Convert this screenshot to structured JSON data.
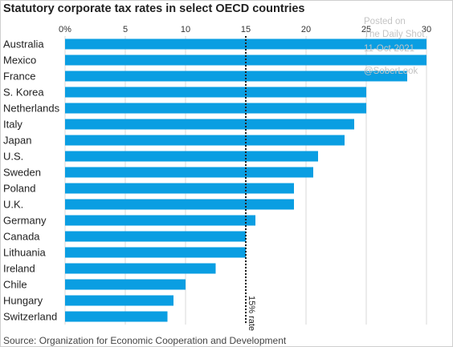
{
  "title": "Statutory corporate tax rates in select OECD countries",
  "source": "Source: Organization for Economic Cooperation and Development",
  "watermark": {
    "posted": "Posted on",
    "site": "The Daily Shot",
    "date": "11-Oct-2021",
    "handle": "@SoberLook"
  },
  "colors": {
    "bar": "#0a9ee2",
    "grid": "#d9d9d9",
    "reference": "#222222"
  },
  "chart_data": {
    "type": "bar",
    "orientation": "horizontal",
    "title": "Statutory corporate tax rates in select OECD countries",
    "categories": [
      "Australia",
      "Mexico",
      "France",
      "S. Korea",
      "Netherlands",
      "Italy",
      "Japan",
      "U.S.",
      "Sweden",
      "Poland",
      "U.K.",
      "Germany",
      "Canada",
      "Lithuania",
      "Ireland",
      "Chile",
      "Hungary",
      "Switzerland"
    ],
    "values": [
      30,
      30,
      28.4,
      25,
      25,
      24,
      23.2,
      21,
      20.6,
      19,
      19,
      15.8,
      15,
      15,
      12.5,
      10,
      9,
      8.5
    ],
    "xlim": [
      0,
      30
    ],
    "xticks": [
      0,
      5,
      10,
      15,
      20,
      25,
      30
    ],
    "xtick_labels": [
      "0%",
      "5",
      "10",
      "15",
      "20",
      "25",
      "30"
    ],
    "reference_line": {
      "value": 15,
      "label": "15% rate"
    },
    "grid": true
  }
}
